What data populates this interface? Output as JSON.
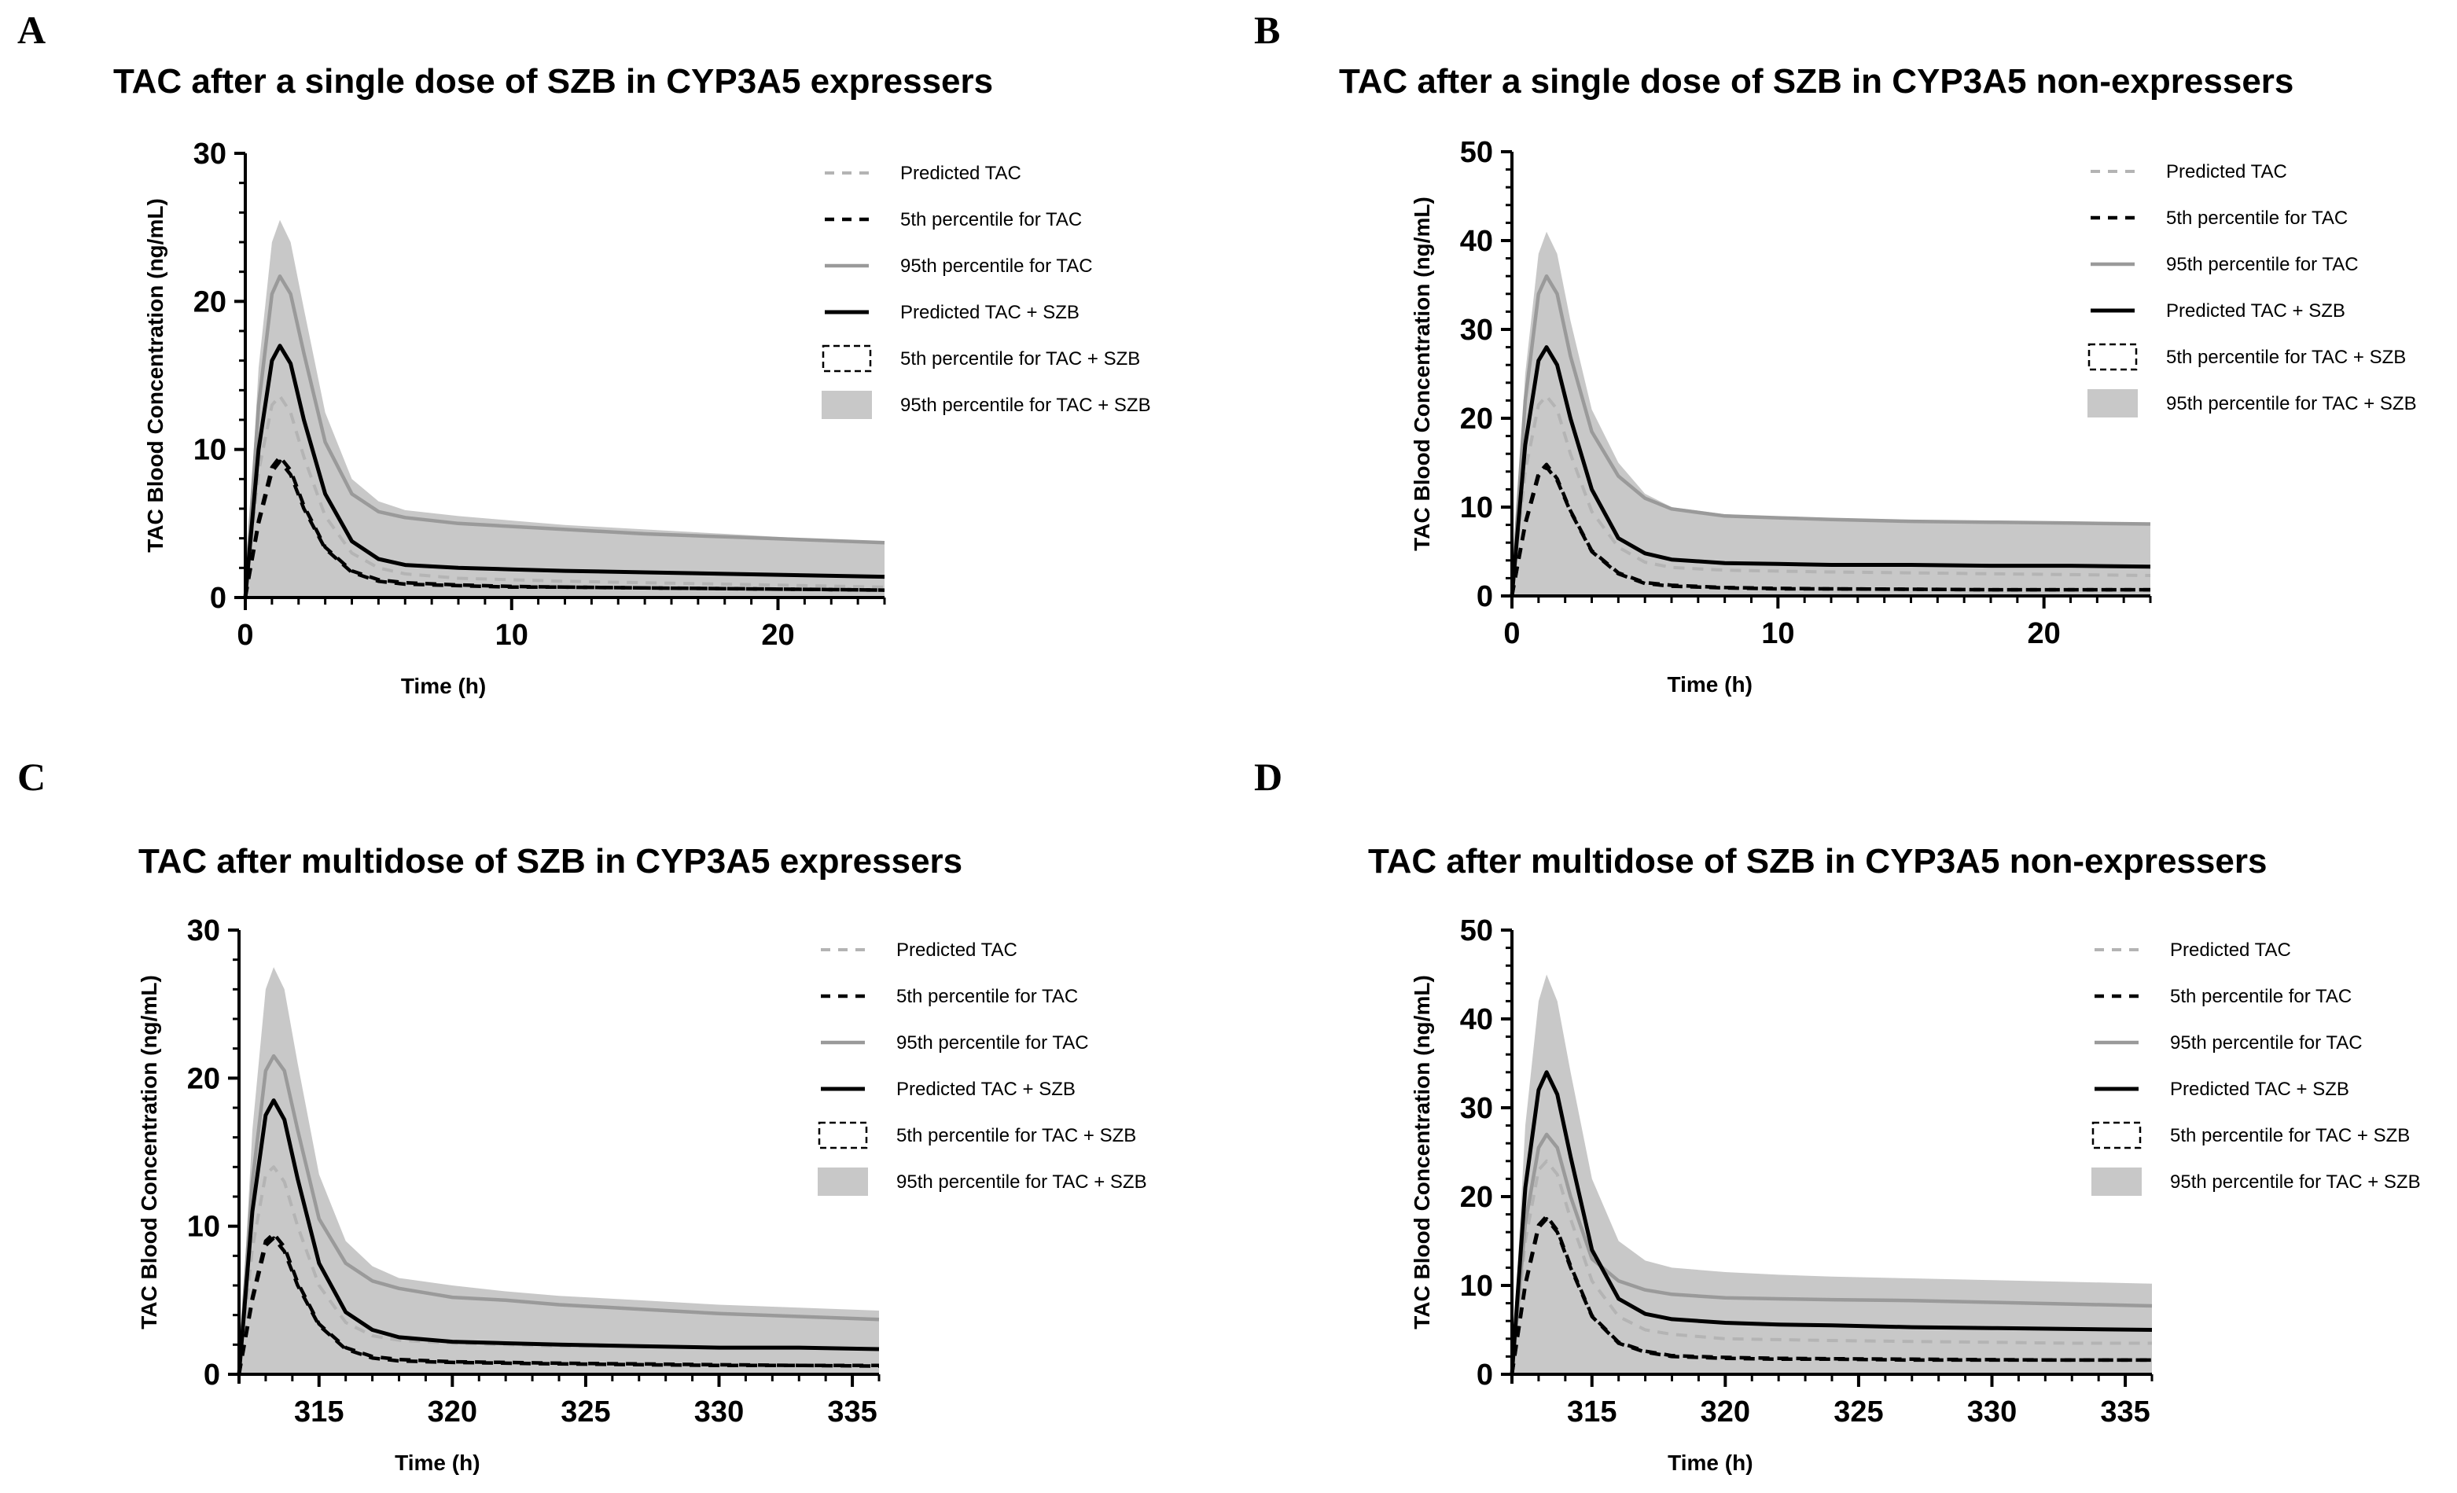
{
  "chart_data": [
    {
      "letter": "A",
      "type": "line",
      "title": "TAC after a single dose of SZB in CYP3A5 expressers",
      "xlabel": "Time (h)",
      "ylabel": "TAC Blood Concentration (ng/mL)",
      "xlim": [
        0,
        24
      ],
      "ylim": [
        0,
        30
      ],
      "xticks": [
        0,
        10,
        20
      ],
      "yticks": [
        0,
        10,
        20,
        30
      ],
      "x": [
        0,
        0.5,
        1,
        1.3,
        1.7,
        2.2,
        3,
        4,
        5,
        6,
        8,
        10,
        12,
        15,
        18,
        21,
        24
      ],
      "series": [
        {
          "name": "Predicted TAC",
          "style": "dash-lightgray",
          "values": [
            0,
            8.5,
            13,
            13.6,
            12.5,
            9.5,
            5.5,
            3,
            2,
            1.6,
            1.3,
            1.2,
            1.1,
            1,
            0.9,
            0.8,
            0.7
          ]
        },
        {
          "name": "5th percentile for TAC",
          "style": "dash-black",
          "values": [
            0,
            5,
            8.5,
            9.2,
            8.3,
            6,
            3.3,
            1.7,
            1.1,
            0.9,
            0.8,
            0.7,
            0.7,
            0.65,
            0.6,
            0.55,
            0.5
          ]
        },
        {
          "name": "95th percentile for TAC",
          "style": "solid-gray",
          "values": [
            0,
            13,
            20.5,
            21.7,
            20.5,
            16.5,
            10.5,
            7,
            5.8,
            5.4,
            5,
            4.8,
            4.6,
            4.3,
            4.1,
            3.9,
            3.7
          ]
        },
        {
          "name": "Predicted TAC + SZB",
          "style": "solid-black",
          "values": [
            0,
            10,
            16,
            17,
            15.8,
            12,
            7,
            3.8,
            2.6,
            2.2,
            2,
            1.9,
            1.8,
            1.7,
            1.6,
            1.5,
            1.4
          ]
        },
        {
          "name": "5th percentile for TAC + SZB",
          "style": "dash-black-box",
          "values": [
            0,
            5.2,
            8.8,
            9.5,
            8.6,
            6.2,
            3.4,
            1.8,
            1.2,
            1,
            0.85,
            0.75,
            0.7,
            0.65,
            0.6,
            0.55,
            0.5
          ]
        },
        {
          "name": "95th percentile for TAC + SZB",
          "style": "band",
          "values": [
            0,
            15.5,
            24,
            25.5,
            24,
            19.5,
            12.5,
            8,
            6.5,
            5.9,
            5.5,
            5.2,
            4.9,
            4.6,
            4.3,
            4,
            3.7
          ]
        }
      ]
    },
    {
      "letter": "B",
      "type": "line",
      "title": "TAC after a single dose of SZB in CYP3A5 non-expressers",
      "xlabel": "Time (h)",
      "ylabel": "TAC Blood Concentration (ng/mL)",
      "xlim": [
        0,
        24
      ],
      "ylim": [
        0,
        50
      ],
      "xticks": [
        0,
        10,
        20
      ],
      "yticks": [
        0,
        10,
        20,
        30,
        40,
        50
      ],
      "x": [
        0,
        0.5,
        1,
        1.3,
        1.7,
        2.2,
        3,
        4,
        5,
        6,
        8,
        10,
        12,
        15,
        18,
        21,
        24
      ],
      "series": [
        {
          "name": "Predicted TAC",
          "style": "dash-lightgray",
          "values": [
            0,
            14,
            21.5,
            22.5,
            21,
            16,
            9.5,
            5.5,
            3.8,
            3.2,
            2.9,
            2.8,
            2.7,
            2.6,
            2.5,
            2.4,
            2.3
          ]
        },
        {
          "name": "5th percentile for TAC",
          "style": "dash-black",
          "values": [
            0,
            8,
            13.5,
            14.5,
            13,
            9.5,
            5,
            2.5,
            1.4,
            1.1,
            0.9,
            0.8,
            0.8,
            0.75,
            0.7,
            0.7,
            0.7
          ]
        },
        {
          "name": "95th percentile for TAC",
          "style": "solid-gray",
          "values": [
            0,
            22,
            34,
            36,
            34,
            27,
            18.5,
            13.5,
            11,
            9.8,
            9,
            8.8,
            8.6,
            8.4,
            8.3,
            8.2,
            8.1
          ]
        },
        {
          "name": "Predicted TAC + SZB",
          "style": "solid-black",
          "values": [
            0,
            17,
            26.5,
            28,
            26,
            20,
            12,
            6.5,
            4.8,
            4.1,
            3.7,
            3.6,
            3.5,
            3.5,
            3.4,
            3.4,
            3.3
          ]
        },
        {
          "name": "5th percentile for TAC + SZB",
          "style": "dash-black-box",
          "values": [
            0,
            8.2,
            13.8,
            14.8,
            13.2,
            9.6,
            5.1,
            2.6,
            1.5,
            1.2,
            0.95,
            0.85,
            0.8,
            0.75,
            0.7,
            0.7,
            0.7
          ]
        },
        {
          "name": "95th percentile for TAC + SZB",
          "style": "band",
          "values": [
            0,
            25,
            38.5,
            41,
            38.5,
            31,
            21,
            15,
            11.5,
            10,
            9.2,
            8.9,
            8.7,
            8.5,
            8.4,
            8.3,
            8.2
          ]
        }
      ]
    },
    {
      "letter": "C",
      "type": "line",
      "title": "TAC after multidose of SZB in CYP3A5 expressers",
      "xlabel": "Time (h)",
      "ylabel": "TAC Blood Concentration (ng/mL)",
      "xlim": [
        312,
        336
      ],
      "ylim": [
        0,
        30
      ],
      "xticks": [
        315,
        320,
        325,
        330,
        335
      ],
      "yticks": [
        0,
        10,
        20,
        30
      ],
      "x": [
        312,
        312.5,
        313,
        313.3,
        313.7,
        314.2,
        315,
        316,
        317,
        318,
        320,
        322,
        324,
        327,
        330,
        333,
        336
      ],
      "series": [
        {
          "name": "Predicted TAC",
          "style": "dash-lightgray",
          "values": [
            0,
            8.5,
            13.5,
            14,
            13,
            10,
            6,
            3.5,
            2.6,
            2.3,
            2.1,
            2,
            1.9,
            1.9,
            1.8,
            1.8,
            1.7
          ]
        },
        {
          "name": "5th percentile for TAC",
          "style": "dash-black",
          "values": [
            0,
            5,
            8.7,
            9.2,
            8.3,
            6,
            3.3,
            1.7,
            1.1,
            0.9,
            0.8,
            0.75,
            0.7,
            0.65,
            0.6,
            0.6,
            0.55
          ]
        },
        {
          "name": "95th percentile for TAC",
          "style": "solid-gray",
          "values": [
            0,
            13,
            20.5,
            21.5,
            20.5,
            16.5,
            10.5,
            7.5,
            6.3,
            5.8,
            5.2,
            5,
            4.7,
            4.4,
            4.1,
            3.9,
            3.7
          ]
        },
        {
          "name": "Predicted TAC + SZB",
          "style": "solid-black",
          "values": [
            0,
            11,
            17.5,
            18.5,
            17.2,
            13.2,
            7.5,
            4.2,
            3,
            2.5,
            2.2,
            2.1,
            2,
            1.9,
            1.8,
            1.8,
            1.7
          ]
        },
        {
          "name": "5th percentile for TAC + SZB",
          "style": "dash-black-box",
          "values": [
            0,
            5.2,
            9,
            9.5,
            8.6,
            6.2,
            3.4,
            1.8,
            1.2,
            1,
            0.85,
            0.8,
            0.75,
            0.7,
            0.65,
            0.6,
            0.6
          ]
        },
        {
          "name": "95th percentile for TAC + SZB",
          "style": "band",
          "values": [
            0,
            16.5,
            26,
            27.5,
            26,
            21,
            13.5,
            9,
            7.3,
            6.5,
            6,
            5.6,
            5.3,
            5,
            4.7,
            4.5,
            4.3
          ]
        }
      ]
    },
    {
      "letter": "D",
      "type": "line",
      "title": "TAC after multidose of SZB in CYP3A5 non-expressers",
      "xlabel": "Time (h)",
      "ylabel": "TAC Blood Concentration (ng/mL)",
      "xlim": [
        312,
        336
      ],
      "ylim": [
        0,
        50
      ],
      "xticks": [
        315,
        320,
        325,
        330,
        335
      ],
      "yticks": [
        0,
        10,
        20,
        30,
        40,
        50
      ],
      "x": [
        312,
        312.5,
        313,
        313.3,
        313.7,
        314.2,
        315,
        316,
        317,
        318,
        320,
        322,
        324,
        327,
        330,
        333,
        336
      ],
      "series": [
        {
          "name": "Predicted TAC",
          "style": "dash-lightgray",
          "values": [
            0,
            15,
            23,
            24,
            22.5,
            17.5,
            10.5,
            6.5,
            5,
            4.5,
            4,
            3.9,
            3.8,
            3.7,
            3.6,
            3.5,
            3.5
          ]
        },
        {
          "name": "5th percentile for TAC",
          "style": "dash-black",
          "values": [
            0,
            10,
            16.5,
            17.5,
            16,
            12,
            6.5,
            3.5,
            2.5,
            2,
            1.8,
            1.7,
            1.7,
            1.6,
            1.6,
            1.6,
            1.6
          ]
        },
        {
          "name": "95th percentile for TAC",
          "style": "solid-gray",
          "values": [
            0,
            17,
            25.5,
            27,
            25.5,
            20,
            13,
            10.5,
            9.5,
            9,
            8.6,
            8.5,
            8.4,
            8.3,
            8.1,
            7.9,
            7.7
          ]
        },
        {
          "name": "Predicted TAC + SZB",
          "style": "solid-black",
          "values": [
            0,
            21,
            32,
            34,
            31.5,
            24.5,
            14,
            8.5,
            6.8,
            6.2,
            5.8,
            5.6,
            5.5,
            5.3,
            5.2,
            5.1,
            5
          ]
        },
        {
          "name": "5th percentile for TAC + SZB",
          "style": "dash-black-box",
          "values": [
            0,
            10.2,
            16.8,
            17.8,
            16.2,
            12.2,
            6.6,
            3.6,
            2.6,
            2.1,
            1.9,
            1.8,
            1.75,
            1.7,
            1.65,
            1.6,
            1.6
          ]
        },
        {
          "name": "95th percentile for TAC + SZB",
          "style": "band",
          "values": [
            0,
            28,
            42,
            45,
            42,
            34,
            22,
            15,
            12.8,
            12,
            11.5,
            11.2,
            11,
            10.8,
            10.6,
            10.4,
            10.2
          ]
        }
      ]
    }
  ]
}
